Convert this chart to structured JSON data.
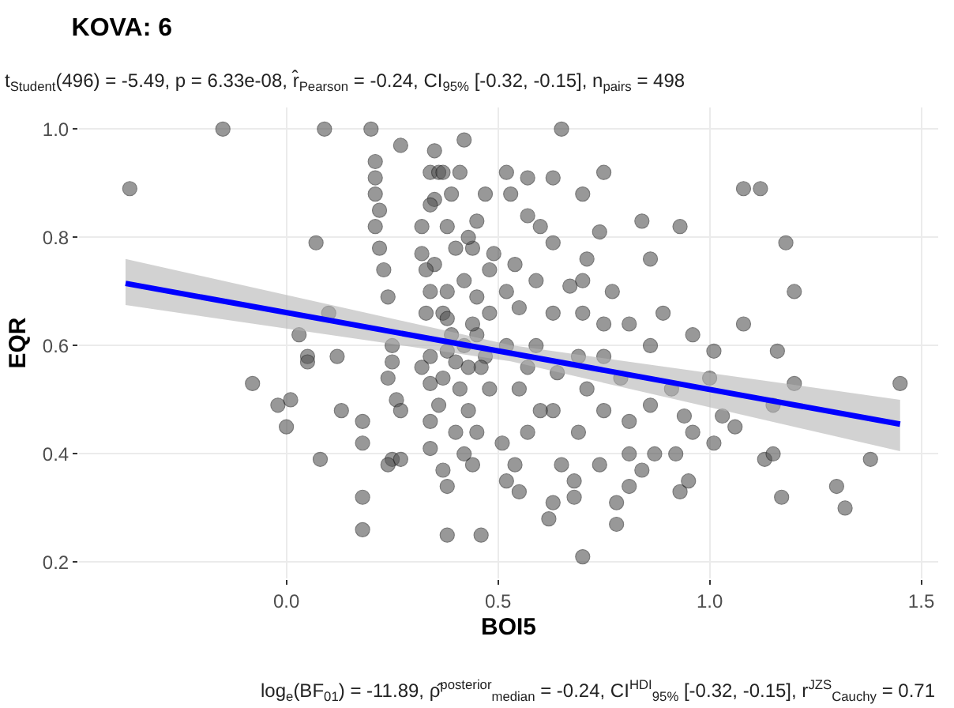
{
  "chart_data": {
    "type": "scatter",
    "title": "KOVA: 6",
    "subtitle": "t$_{Student}$(496) = -5.49, p = 6.33e-08, r̂$_{Pearson}$ = -0.24, CI$_{95%}$ [-0.32, -0.15], n$_{pairs}$ = 498",
    "xlabel": "BOI5",
    "ylabel": "EQR",
    "annotations": [
      "log$_{e}$(BF$_{01}$) = -11.89, ρ̂$^{posterior}$$_{median}$ = -0.24, CI$^{HDI}$$_{95%}$ [-0.32, -0.15], r$^{JZS}$$_{Cauchy}$ = 0.71"
    ],
    "xlim": [
      -0.49,
      1.54
    ],
    "ylim": [
      0.17,
      1.04
    ],
    "xticks": [
      {
        "value": 0,
        "label": "0.0"
      },
      0.5,
      {
        "value": 1,
        "label": "1.0"
      },
      1.5
    ],
    "yticks": [
      0.2,
      0.4,
      0.6,
      0.8,
      {
        "value": 1,
        "label": "1.0"
      }
    ],
    "grid": true,
    "series": [
      {
        "marker": "circle",
        "color": "#555555",
        "x": [
          -0.37,
          -0.15,
          0.09,
          0.2,
          0.27,
          0.42,
          0.07,
          -0.08,
          -0.02,
          0.01,
          0.0,
          0.03,
          0.05,
          0.05,
          0.08,
          0.13,
          0.18,
          0.18,
          0.18,
          0.18,
          0.1,
          0.12,
          0.21,
          0.21,
          0.21,
          0.22,
          0.21,
          0.22,
          0.23,
          0.24,
          0.25,
          0.25,
          0.24,
          0.26,
          0.27,
          0.25,
          0.24,
          0.27,
          0.35,
          0.34,
          0.36,
          0.37,
          0.35,
          0.34,
          0.32,
          0.35,
          0.33,
          0.32,
          0.34,
          0.33,
          0.37,
          0.34,
          0.32,
          0.34,
          0.34,
          0.34,
          0.37,
          0.38,
          0.38,
          0.39,
          0.38,
          0.38,
          0.38,
          0.38,
          0.37,
          0.36,
          0.4,
          0.41,
          0.65,
          0.52,
          0.57,
          0.63,
          0.75,
          0.47,
          0.53,
          0.7,
          0.57,
          0.6,
          0.84,
          0.93,
          1.08,
          1.12,
          1.18,
          1.2,
          1.08,
          0.86,
          0.74,
          0.71,
          0.63,
          0.54,
          0.49,
          0.45,
          0.7,
          0.77,
          0.89,
          0.81,
          0.96,
          1.01,
          0.86,
          1.16,
          1.2,
          1.45,
          1.0,
          1.15,
          1.03,
          1.06,
          1.01,
          1.13,
          1.15,
          1.38,
          1.3,
          1.32,
          1.17,
          0.93,
          0.95,
          0.96,
          0.94,
          0.92,
          0.87,
          0.81,
          0.84,
          0.81,
          0.78,
          0.78,
          0.7,
          0.63,
          0.62,
          0.55,
          0.46,
          0.44,
          0.52,
          0.68,
          0.74,
          0.69,
          0.75,
          0.81,
          0.86,
          0.91,
          0.79,
          0.71,
          0.63,
          0.57,
          0.51,
          0.45,
          0.48,
          0.55,
          0.64,
          0.69,
          0.75,
          0.59,
          0.52,
          0.47,
          0.48,
          0.55,
          0.63,
          0.7,
          0.75,
          0.67,
          0.59,
          0.52,
          0.45,
          0.48,
          0.44,
          0.45,
          0.46,
          0.57,
          0.6,
          0.54,
          0.65,
          0.68,
          0.42,
          0.43,
          0.41,
          0.43,
          0.4,
          0.42,
          0.44,
          0.42,
          0.43,
          0.4,
          0.39
        ],
        "values": [
          0.89,
          1.0,
          1.0,
          1.0,
          0.97,
          0.98,
          0.79,
          0.53,
          0.49,
          0.5,
          0.45,
          0.62,
          0.58,
          0.57,
          0.39,
          0.48,
          0.46,
          0.42,
          0.32,
          0.26,
          0.66,
          0.58,
          0.94,
          0.91,
          0.88,
          0.85,
          0.82,
          0.78,
          0.74,
          0.69,
          0.6,
          0.57,
          0.54,
          0.5,
          0.48,
          0.39,
          0.38,
          0.39,
          0.96,
          0.92,
          0.92,
          0.92,
          0.87,
          0.86,
          0.82,
          0.75,
          0.74,
          0.77,
          0.7,
          0.66,
          0.66,
          0.58,
          0.56,
          0.53,
          0.46,
          0.41,
          0.37,
          0.34,
          0.25,
          0.88,
          0.82,
          0.7,
          0.65,
          0.59,
          0.54,
          0.49,
          0.78,
          0.92,
          1.0,
          0.92,
          0.91,
          0.91,
          0.92,
          0.88,
          0.88,
          0.88,
          0.84,
          0.82,
          0.83,
          0.82,
          0.89,
          0.89,
          0.79,
          0.7,
          0.64,
          0.76,
          0.81,
          0.76,
          0.79,
          0.75,
          0.77,
          0.83,
          0.72,
          0.7,
          0.66,
          0.64,
          0.62,
          0.59,
          0.6,
          0.59,
          0.53,
          0.53,
          0.54,
          0.49,
          0.47,
          0.45,
          0.42,
          0.39,
          0.4,
          0.39,
          0.34,
          0.3,
          0.32,
          0.33,
          0.35,
          0.44,
          0.47,
          0.4,
          0.4,
          0.4,
          0.37,
          0.34,
          0.31,
          0.27,
          0.21,
          0.31,
          0.28,
          0.33,
          0.25,
          0.38,
          0.35,
          0.32,
          0.38,
          0.44,
          0.48,
          0.46,
          0.49,
          0.52,
          0.54,
          0.52,
          0.48,
          0.44,
          0.42,
          0.44,
          0.52,
          0.52,
          0.55,
          0.58,
          0.58,
          0.6,
          0.6,
          0.58,
          0.66,
          0.67,
          0.66,
          0.66,
          0.64,
          0.71,
          0.72,
          0.7,
          0.69,
          0.74,
          0.78,
          0.62,
          0.56,
          0.56,
          0.48,
          0.38,
          0.38,
          0.35,
          0.6,
          0.56,
          0.52,
          0.48,
          0.44,
          0.4,
          0.64,
          0.72,
          0.8,
          0.57,
          0.62
        ]
      },
      {
        "type": "line",
        "marker": "none",
        "color": "#0000ff",
        "x": [
          -0.38,
          0.53,
          1.45
        ],
        "values": [
          0.715,
          0.586,
          0.455
        ],
        "lower": [
          0.675,
          0.571,
          0.405
        ],
        "upper": [
          0.76,
          0.601,
          0.5
        ]
      }
    ]
  }
}
